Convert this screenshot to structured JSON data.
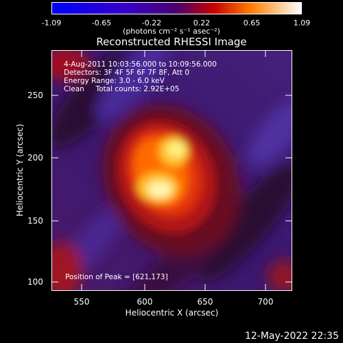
{
  "colorbar": {
    "ticks": [
      "-1.09",
      "-0.65",
      "-0.22",
      "0.22",
      "0.65",
      "1.09"
    ],
    "units": "(photons cm⁻² s⁻¹ asec⁻²)"
  },
  "title": "Reconstructed RHESSI Image",
  "info": {
    "time": "4-Aug-2011 10:03:56.000 to 10:09:56.000",
    "detectors": "Detectors: 3F 4F 5F 6F 7F 8F, Att 0",
    "energy": "Energy Range: 3.0 - 6.0 keV",
    "clean": "Clean     Total counts: 2.92E+05"
  },
  "peak": "Position of Peak = [621,173]",
  "axes": {
    "xlabel": "Heliocentric X (arcsec)",
    "ylabel": "Heliocentric Y (arcsec)",
    "xticks": [
      "550",
      "600",
      "650",
      "700"
    ],
    "yticks": [
      "100",
      "150",
      "200",
      "250"
    ]
  },
  "timestamp": "12-May-2022 22:35"
}
